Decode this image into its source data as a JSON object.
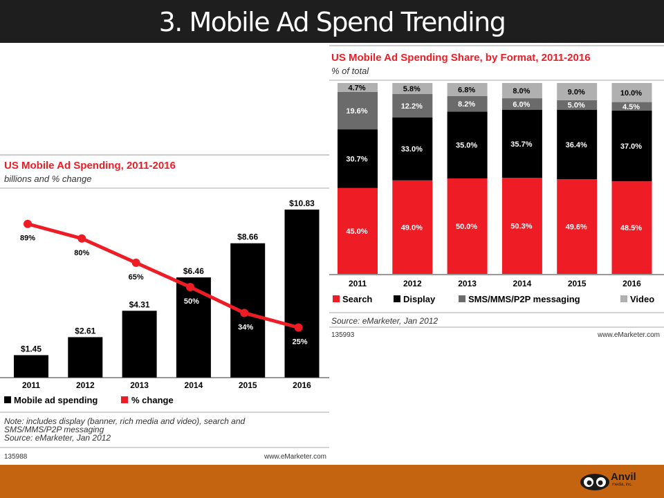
{
  "slide": {
    "title": "3. Mobile Ad Spend Trending",
    "logo_name": "Anvil",
    "logo_sub": "media, inc."
  },
  "colors": {
    "red": "#ee1c25",
    "black": "#000000",
    "dark_gray": "#6b6b6b",
    "light_gray": "#b0b0b0",
    "title_bar": "#1e1e1e",
    "footer_bar": "#c46410"
  },
  "chart_data": [
    {
      "type": "bar",
      "title": "US Mobile Ad Spending, 2011-2016",
      "subtitle": "billions and % change",
      "categories": [
        "2011",
        "2012",
        "2013",
        "2014",
        "2015",
        "2016"
      ],
      "series": [
        {
          "name": "Mobile ad spending",
          "values": [
            1.45,
            2.61,
            4.31,
            6.46,
            8.66,
            10.83
          ],
          "labels": [
            "$1.45",
            "$2.61",
            "$4.31",
            "$6.46",
            "$8.66",
            "$10.83"
          ]
        },
        {
          "name": "% change",
          "type": "line",
          "values": [
            89,
            80,
            65,
            50,
            34,
            25
          ],
          "labels": [
            "89%",
            "80%",
            "65%",
            "50%",
            "34%",
            "25%"
          ]
        }
      ],
      "ylim": [
        0,
        11.5
      ],
      "line_ylim": [
        0,
        100
      ],
      "note": [
        "Note: includes display (banner, rich media and video), search and",
        "SMS/MMS/P2P messaging",
        "Source: eMarketer, Jan 2012"
      ],
      "chart_id": "135988",
      "watermark": "www.eMarketer.com"
    },
    {
      "type": "bar",
      "stacked": true,
      "title": "US Mobile Ad Spending Share, by Format, 2011-2016",
      "subtitle": "% of total",
      "categories": [
        "2011",
        "2012",
        "2013",
        "2014",
        "2015",
        "2016"
      ],
      "series": [
        {
          "name": "Search",
          "values": [
            45.0,
            49.0,
            50.0,
            50.3,
            49.6,
            48.5
          ]
        },
        {
          "name": "Display",
          "values": [
            30.7,
            33.0,
            35.0,
            35.7,
            36.4,
            37.0
          ]
        },
        {
          "name": "SMS/MMS/P2P messaging",
          "values": [
            19.6,
            12.2,
            8.2,
            6.0,
            5.0,
            4.5
          ]
        },
        {
          "name": "Video",
          "values": [
            4.7,
            5.8,
            6.8,
            8.0,
            9.0,
            10.0
          ]
        }
      ],
      "ylim": [
        0,
        100
      ],
      "source": "Source: eMarketer, Jan 2012",
      "chart_id": "135993",
      "watermark": "www.eMarketer.com"
    }
  ]
}
